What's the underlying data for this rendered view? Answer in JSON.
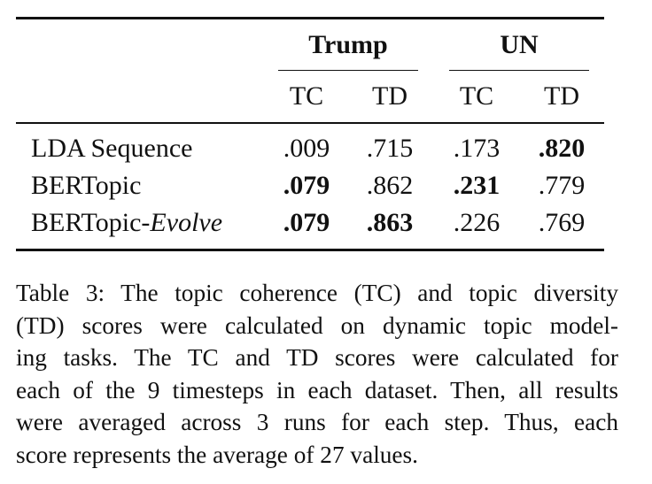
{
  "table": {
    "groups": [
      {
        "label": "Trump"
      },
      {
        "label": "UN"
      }
    ],
    "columns": [
      "TC",
      "TD",
      "TC",
      "TD"
    ],
    "rows": [
      {
        "method": "LDA Sequence",
        "method_suffix": "",
        "values": [
          ".009",
          ".715",
          ".173",
          ".820"
        ],
        "bold": [
          false,
          false,
          false,
          true
        ]
      },
      {
        "method": "BERTopic",
        "method_suffix": "",
        "values": [
          ".079",
          ".862",
          ".231",
          ".779"
        ],
        "bold": [
          true,
          false,
          true,
          false
        ]
      },
      {
        "method": "BERTopic-",
        "method_suffix": "Evolve",
        "values": [
          ".079",
          ".863",
          ".226",
          ".769"
        ],
        "bold": [
          true,
          true,
          false,
          false
        ]
      }
    ]
  },
  "caption": {
    "lines": [
      "Table 3: The topic coherence (TC) and topic diversity",
      "(TD) scores were calculated on dynamic topic model-",
      "ing tasks.  The TC and TD scores were calculated for",
      "each of the 9 timesteps in each dataset. Then, all results",
      "were averaged across 3 runs for each step.  Thus, each",
      "score represents the average of 27 values."
    ]
  }
}
